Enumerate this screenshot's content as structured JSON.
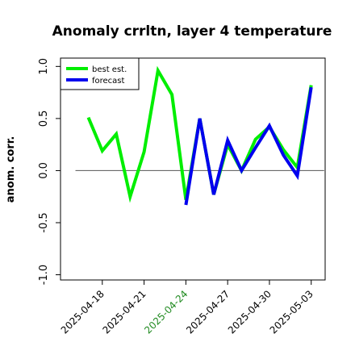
{
  "chart_data": {
    "type": "line",
    "title": "Anomaly crrltn, layer 4 temperature",
    "xlabel": "",
    "ylabel": "anom. corr.",
    "ylim": [
      -1.05,
      1.08
    ],
    "yticks": [
      "-1.0",
      "-0.5",
      "0.0",
      "0.5",
      "1.0"
    ],
    "ytick_values": [
      -1.0,
      -0.5,
      0.0,
      0.5,
      1.0
    ],
    "x_dates": [
      "2025-04-17",
      "2025-04-18",
      "2025-04-19",
      "2025-04-20",
      "2025-04-21",
      "2025-04-22",
      "2025-04-23",
      "2025-04-24",
      "2025-04-25",
      "2025-04-26",
      "2025-04-27",
      "2025-04-28",
      "2025-04-29",
      "2025-04-30",
      "2025-05-01",
      "2025-05-02",
      "2025-05-03"
    ],
    "xlim": [
      "2025-04-15",
      "2025-05-04"
    ],
    "xticks": [
      "2025-04-18",
      "2025-04-21",
      "2025-04-24",
      "2025-04-27",
      "2025-04-30",
      "2025-05-03"
    ],
    "xtick_colors": [
      "#000000",
      "#000000",
      "#228b22",
      "#000000",
      "#000000",
      "#000000"
    ],
    "zero_line": 0.0,
    "legend_position": "top-left",
    "series": [
      {
        "name": "best est.",
        "color": "#00ee00",
        "values": [
          0.51,
          0.19,
          0.35,
          -0.25,
          0.18,
          0.96,
          0.73,
          -0.28,
          0.5,
          -0.23,
          0.25,
          0.0,
          0.3,
          0.42,
          0.2,
          0.03,
          0.82
        ]
      },
      {
        "name": "forecast",
        "color": "#0000ee",
        "values": [
          null,
          null,
          null,
          null,
          null,
          null,
          null,
          -0.33,
          0.5,
          -0.23,
          0.29,
          0.0,
          0.22,
          0.43,
          0.15,
          -0.05,
          0.8
        ]
      }
    ]
  }
}
